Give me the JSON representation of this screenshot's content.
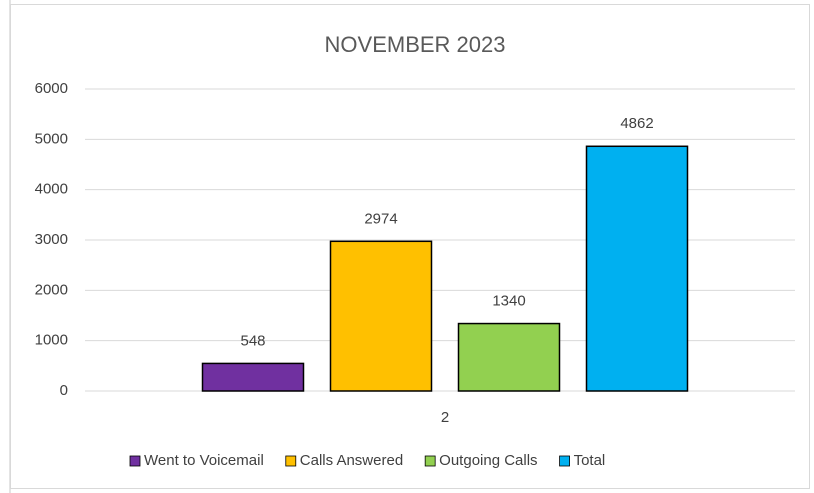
{
  "chart_data": {
    "type": "bar",
    "title": "NOVEMBER 2023",
    "categories": [
      "2"
    ],
    "series": [
      {
        "name": "Went to Voicemail",
        "color": "#7030a0",
        "values": [
          548
        ]
      },
      {
        "name": "Calls Answered",
        "color": "#ffc000",
        "values": [
          2974
        ]
      },
      {
        "name": "Outgoing Calls",
        "color": "#92d050",
        "values": [
          1340
        ]
      },
      {
        "name": "Total",
        "color": "#00b0f0",
        "values": [
          4862
        ]
      }
    ],
    "ylim": [
      0,
      6000
    ],
    "yticks": [
      0,
      1000,
      2000,
      3000,
      4000,
      5000,
      6000
    ],
    "grid": true,
    "legend": "bottom",
    "data_labels": true
  }
}
